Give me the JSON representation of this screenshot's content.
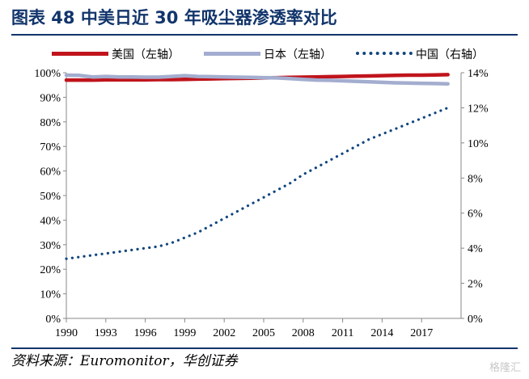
{
  "title": "图表  48    中美日近 30 年吸尘器渗透率对比",
  "source": "资料来源：Euromonitor，华创证券",
  "watermark": "格隆汇",
  "chart_data": {
    "type": "line",
    "x": [
      1990,
      1991,
      1992,
      1993,
      1994,
      1995,
      1996,
      1997,
      1998,
      1999,
      2000,
      2001,
      2002,
      2003,
      2004,
      2005,
      2006,
      2007,
      2008,
      2009,
      2010,
      2011,
      2012,
      2013,
      2014,
      2015,
      2016,
      2017,
      2018,
      2019
    ],
    "xticks": [
      "1990",
      "1993",
      "1996",
      "1999",
      "2002",
      "2005",
      "2008",
      "2011",
      "2014",
      "2017"
    ],
    "xlim": [
      1990,
      2020
    ],
    "y_left": {
      "ylim": [
        0,
        100
      ],
      "ticks": [
        "0%",
        "10%",
        "20%",
        "30%",
        "40%",
        "50%",
        "60%",
        "70%",
        "80%",
        "90%",
        "100%"
      ]
    },
    "y_right": {
      "ylim": [
        0,
        14
      ],
      "ticks": [
        "0%",
        "2%",
        "4%",
        "6%",
        "8%",
        "10%",
        "12%",
        "14%"
      ]
    },
    "series": [
      {
        "name": "美国（左轴）",
        "axis": "left",
        "color": "#c0141c",
        "style": "solid",
        "values": [
          97.0,
          97.0,
          97.0,
          97.1,
          97.1,
          97.1,
          97.1,
          97.2,
          97.2,
          97.3,
          97.4,
          97.5,
          97.6,
          97.7,
          97.8,
          97.9,
          98.0,
          98.1,
          98.2,
          98.3,
          98.4,
          98.5,
          98.6,
          98.7,
          98.8,
          98.9,
          99.0,
          99.0,
          99.1,
          99.2
        ]
      },
      {
        "name": "日本（左轴）",
        "axis": "left",
        "color": "#a3adcf",
        "style": "solid",
        "values": [
          99.0,
          98.9,
          98.3,
          98.5,
          98.3,
          98.3,
          98.2,
          98.2,
          98.5,
          98.8,
          98.5,
          98.4,
          98.3,
          98.2,
          98.1,
          98.0,
          97.9,
          97.6,
          97.3,
          97.0,
          96.9,
          96.7,
          96.5,
          96.3,
          96.1,
          95.9,
          95.8,
          95.7,
          95.6,
          95.5
        ]
      },
      {
        "name": "中国（右轴）",
        "axis": "right",
        "color": "#12467e",
        "style": "dotted",
        "values": [
          3.4,
          3.5,
          3.6,
          3.7,
          3.8,
          3.9,
          4.0,
          4.1,
          4.3,
          4.6,
          4.9,
          5.3,
          5.7,
          6.1,
          6.5,
          6.9,
          7.3,
          7.7,
          8.2,
          8.6,
          9.0,
          9.4,
          9.8,
          10.2,
          10.5,
          10.8,
          11.1,
          11.4,
          11.7,
          12.0
        ]
      }
    ]
  }
}
